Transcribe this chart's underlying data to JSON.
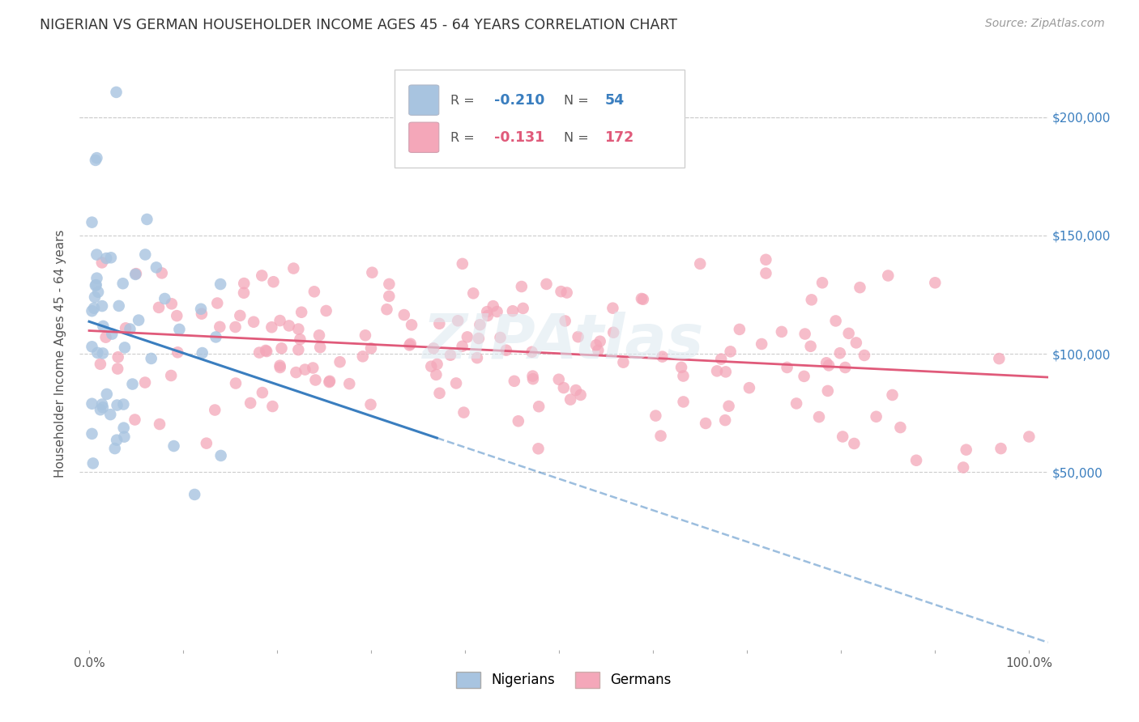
{
  "title": "NIGERIAN VS GERMAN HOUSEHOLDER INCOME AGES 45 - 64 YEARS CORRELATION CHART",
  "source": "Source: ZipAtlas.com",
  "ylabel": "Householder Income Ages 45 - 64 years",
  "ytick_labels": [
    "$50,000",
    "$100,000",
    "$150,000",
    "$200,000"
  ],
  "ytick_values": [
    50000,
    100000,
    150000,
    200000
  ],
  "ylim": [
    -25000,
    225000
  ],
  "xlim": [
    -0.01,
    1.02
  ],
  "r_nigerian": -0.21,
  "n_nigerian": 54,
  "r_german": -0.131,
  "n_german": 172,
  "nigerian_color": "#a8c4e0",
  "german_color": "#f4a7b9",
  "nigerian_line_color": "#3a7ebf",
  "german_line_color": "#e05a7a",
  "legend_nigerian": "Nigerians",
  "legend_german": "Germans",
  "watermark": "ZIPAtlas",
  "background_color": "#ffffff"
}
